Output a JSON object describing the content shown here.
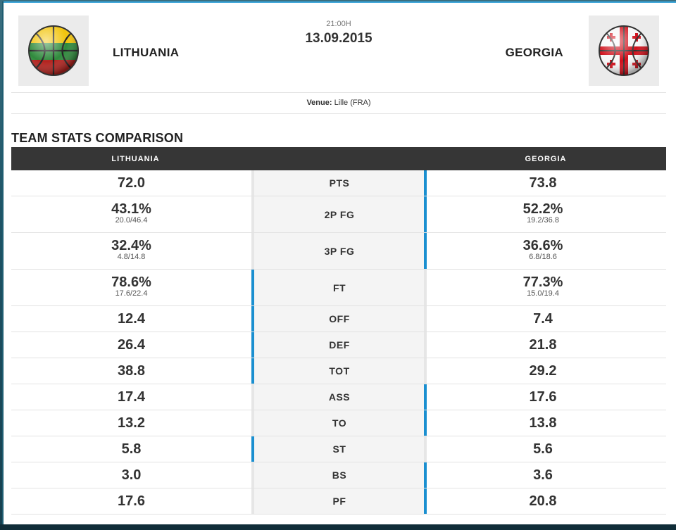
{
  "match": {
    "time": "21:00H",
    "date": "13.09.2015",
    "venue_label": "Venue:",
    "venue": "Lille (FRA)"
  },
  "home": {
    "name": "LITHUANIA",
    "flag_colors": [
      "#f4c300",
      "#2a8a3a",
      "#b71c1c"
    ]
  },
  "away": {
    "name": "GEORGIA",
    "flag_colors": [
      "#ffffff",
      "#d0021b"
    ]
  },
  "section_title": "TEAM STATS COMPARISON",
  "table": {
    "home_header": "LITHUANIA",
    "away_header": "GEORGIA",
    "accent_color": "#1a8fd0",
    "rows": [
      {
        "label": "PTS",
        "home": "72.0",
        "home_sub": "",
        "away": "73.8",
        "away_sub": "",
        "winner": "away"
      },
      {
        "label": "2P FG",
        "home": "43.1%",
        "home_sub": "20.0/46.4",
        "away": "52.2%",
        "away_sub": "19.2/36.8",
        "winner": "away"
      },
      {
        "label": "3P FG",
        "home": "32.4%",
        "home_sub": "4.8/14.8",
        "away": "36.6%",
        "away_sub": "6.8/18.6",
        "winner": "away"
      },
      {
        "label": "FT",
        "home": "78.6%",
        "home_sub": "17.6/22.4",
        "away": "77.3%",
        "away_sub": "15.0/19.4",
        "winner": "home"
      },
      {
        "label": "OFF",
        "home": "12.4",
        "home_sub": "",
        "away": "7.4",
        "away_sub": "",
        "winner": "home"
      },
      {
        "label": "DEF",
        "home": "26.4",
        "home_sub": "",
        "away": "21.8",
        "away_sub": "",
        "winner": "home"
      },
      {
        "label": "TOT",
        "home": "38.8",
        "home_sub": "",
        "away": "29.2",
        "away_sub": "",
        "winner": "home"
      },
      {
        "label": "ASS",
        "home": "17.4",
        "home_sub": "",
        "away": "17.6",
        "away_sub": "",
        "winner": "away"
      },
      {
        "label": "TO",
        "home": "13.2",
        "home_sub": "",
        "away": "13.8",
        "away_sub": "",
        "winner": "away"
      },
      {
        "label": "ST",
        "home": "5.8",
        "home_sub": "",
        "away": "5.6",
        "away_sub": "",
        "winner": "home"
      },
      {
        "label": "BS",
        "home": "3.0",
        "home_sub": "",
        "away": "3.6",
        "away_sub": "",
        "winner": "away"
      },
      {
        "label": "PF",
        "home": "17.6",
        "home_sub": "",
        "away": "20.8",
        "away_sub": "",
        "winner": "away"
      }
    ]
  }
}
